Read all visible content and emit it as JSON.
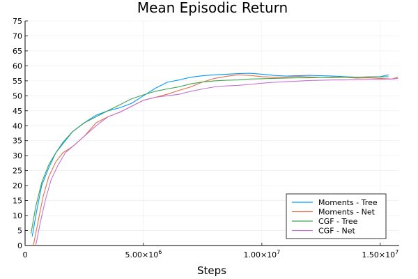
{
  "chart_data": {
    "type": "line",
    "title": "Mean Episodic Return",
    "xlabel": "Steps",
    "ylabel": "",
    "xlim": [
      0,
      15800000
    ],
    "ylim": [
      0,
      75
    ],
    "x_ticks": [
      0,
      5000000,
      10000000,
      15000000
    ],
    "x_tick_labels": [
      "0",
      "5.00×10^6",
      "1.00×10^7",
      "1.50×10^7"
    ],
    "y_ticks": [
      0,
      5,
      10,
      15,
      20,
      25,
      30,
      35,
      40,
      45,
      50,
      55,
      60,
      65,
      70,
      75
    ],
    "y_tick_labels": [
      "0",
      "5",
      "10",
      "15",
      "20",
      "25",
      "30",
      "35",
      "40",
      "45",
      "50",
      "55",
      "60",
      "65",
      "70",
      "75"
    ],
    "grid": true,
    "legend_position": "bottom-right",
    "colors": [
      "#009AFA",
      "#E36F47",
      "#3EA44E",
      "#C371D2"
    ],
    "series": [
      {
        "name": "Moments - Tree",
        "x": [
          300000,
          500000,
          700000,
          1000000,
          1300000,
          1600000,
          2000000,
          2500000,
          3000000,
          3500000,
          4000000,
          4500000,
          5000000,
          5500000,
          6000000,
          6500000,
          7000000,
          7500000,
          8000000,
          8500000,
          9000000,
          9500000,
          10000000,
          10500000,
          11000000,
          11500000,
          12000000,
          12500000,
          13000000,
          13500000,
          14000000,
          14500000,
          15000000,
          15350000
        ],
        "y": [
          3,
          12,
          20,
          26,
          31,
          34,
          38,
          41,
          43.5,
          45,
          46,
          47.5,
          50,
          52.5,
          54.5,
          55.3,
          56.2,
          56.7,
          57,
          57.2,
          57.4,
          57.5,
          57.2,
          56.8,
          56.6,
          56.7,
          56.8,
          56.7,
          56.6,
          56.4,
          56.2,
          56.3,
          56.4,
          57
        ]
      },
      {
        "name": "Moments - Net",
        "x": [
          350000,
          550000,
          750000,
          1000000,
          1300000,
          1600000,
          2000000,
          2500000,
          3000000,
          3500000,
          4000000,
          4500000,
          5000000,
          5500000,
          6000000,
          6500000,
          7000000,
          7500000,
          8000000,
          8500000,
          9000000,
          9500000,
          10000000,
          10500000,
          11000000,
          11500000,
          12000000,
          12500000,
          13000000,
          13500000,
          14000000,
          14500000,
          15000000,
          15500000,
          15750000
        ],
        "y": [
          0,
          8,
          16,
          23,
          28,
          31,
          33,
          36.5,
          41,
          43,
          44.5,
          46.5,
          48.5,
          49.5,
          50.5,
          51.8,
          53,
          54.6,
          55.8,
          56.5,
          57,
          56.8,
          56.4,
          56.2,
          56.2,
          56.5,
          56.3,
          56.1,
          56.3,
          56.2,
          55.9,
          56,
          55.8,
          55.6,
          56.2
        ]
      },
      {
        "name": "CGF - Tree",
        "x": [
          250000,
          450000,
          700000,
          1000000,
          1300000,
          1600000,
          2000000,
          2500000,
          3000000,
          3500000,
          4000000,
          4500000,
          5000000,
          5500000,
          6000000,
          6500000,
          7000000,
          7500000,
          8000000,
          8500000,
          9000000,
          9500000,
          10000000,
          10500000,
          11000000,
          11500000,
          12000000,
          12500000,
          13000000,
          13500000,
          14000000,
          14500000,
          15000000,
          15350000
        ],
        "y": [
          4,
          13,
          21,
          27,
          31,
          34.5,
          38,
          41,
          43,
          45,
          47,
          49,
          50.3,
          51.5,
          52.3,
          53,
          54,
          54.6,
          55,
          55.2,
          55.3,
          55.6,
          55.7,
          55.8,
          55.9,
          56,
          56,
          56.1,
          56.1,
          56.2,
          56.2,
          56.3,
          56.3,
          56.4
        ]
      },
      {
        "name": "CGF - Net",
        "x": [
          450000,
          650000,
          850000,
          1100000,
          1400000,
          1700000,
          2000000,
          2500000,
          3000000,
          3500000,
          4000000,
          4500000,
          5000000,
          5500000,
          6000000,
          6500000,
          7000000,
          7500000,
          8000000,
          8500000,
          9000000,
          9500000,
          10000000,
          10500000,
          11000000,
          11500000,
          12000000,
          12500000,
          13000000,
          13500000,
          14000000,
          14500000,
          15000000,
          15500000,
          15750000
        ],
        "y": [
          0,
          8,
          15,
          22,
          27,
          31,
          33,
          36.5,
          40,
          43,
          44.5,
          46.5,
          48.5,
          49.5,
          50,
          50.5,
          51.5,
          52.3,
          53,
          53.3,
          53.5,
          53.8,
          54.2,
          54.5,
          54.7,
          54.9,
          55.1,
          55.2,
          55.3,
          55.3,
          55.4,
          55.5,
          55.5,
          55.6,
          55.8
        ]
      }
    ]
  }
}
